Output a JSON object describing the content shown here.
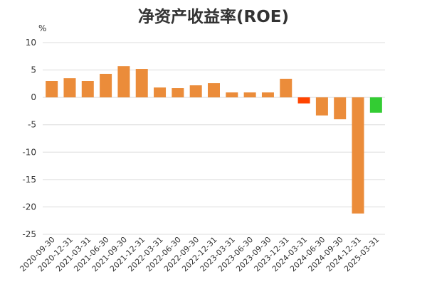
{
  "chart_data": {
    "type": "bar",
    "title": "净资产收益率(ROE)",
    "ylabel": "%",
    "xlabel": "",
    "ylim": [
      -25,
      10
    ],
    "yticks": [
      10,
      5,
      0,
      -5,
      -10,
      -15,
      -20,
      -25
    ],
    "grid": true,
    "categories": [
      "2020-09-30",
      "2020-12-31",
      "2021-03-31",
      "2021-06-30",
      "2021-09-30",
      "2021-12-31",
      "2022-03-31",
      "2022-06-30",
      "2022-09-30",
      "2022-12-31",
      "2023-03-31",
      "2023-06-30",
      "2023-09-30",
      "2023-12-31",
      "2024-03-31",
      "2024-06-30",
      "2024-09-30",
      "2024-12-31",
      "2025-03-31"
    ],
    "values": [
      3.0,
      3.5,
      3.0,
      4.3,
      5.7,
      5.2,
      1.8,
      1.7,
      2.2,
      2.6,
      0.9,
      0.9,
      0.9,
      3.4,
      -1.1,
      -3.3,
      -4.0,
      -21.2,
      -2.8
    ],
    "colors": {
      "default": "#eb8c3a",
      "2024-03-31": "#ff4400",
      "2025-03-31": "#33cc33"
    }
  }
}
